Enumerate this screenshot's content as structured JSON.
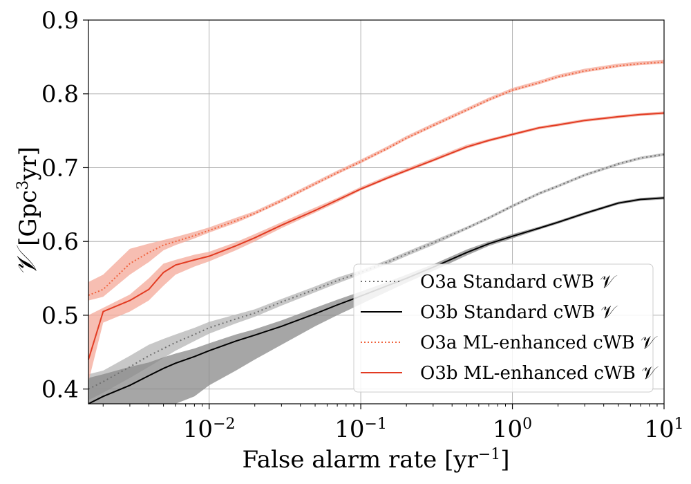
{
  "chart_data": {
    "type": "line",
    "title": "",
    "xlabel_main": "False alarm rate [yr",
    "xlabel_sup": "−1",
    "xlabel_end": "]",
    "ylabel_symbol": "𝒱",
    "ylabel_main": " [Gpc",
    "ylabel_sup": "3",
    "ylabel_end": "yr]",
    "xscale": "log",
    "xlim": [
      0.0016,
      10
    ],
    "ylim": [
      0.38,
      0.9
    ],
    "grid": true,
    "legend_position": "lower-right",
    "x_ticks": [
      {
        "value": 0.01,
        "base": "10",
        "exp": "−2"
      },
      {
        "value": 0.1,
        "base": "10",
        "exp": "−1"
      },
      {
        "value": 1,
        "base": "10",
        "exp": "0"
      },
      {
        "value": 10,
        "base": "10",
        "exp": "1"
      }
    ],
    "y_ticks": [
      {
        "value": 0.4,
        "label": "0.4"
      },
      {
        "value": 0.5,
        "label": "0.5"
      },
      {
        "value": 0.6,
        "label": "0.6"
      },
      {
        "value": 0.7,
        "label": "0.7"
      },
      {
        "value": 0.8,
        "label": "0.8"
      },
      {
        "value": 0.9,
        "label": "0.9"
      }
    ],
    "series": [
      {
        "name": "O3a Standard cWB 𝒱",
        "color": "#6e6e6e",
        "band_color": "#b4b4b4",
        "dash": "2,4",
        "x": [
          0.0016,
          0.002,
          0.003,
          0.004,
          0.005,
          0.006,
          0.008,
          0.01,
          0.015,
          0.02,
          0.03,
          0.05,
          0.07,
          0.1,
          0.15,
          0.2,
          0.3,
          0.5,
          0.7,
          1,
          1.5,
          2,
          3,
          5,
          7,
          10
        ],
        "y": [
          0.4,
          0.41,
          0.43,
          0.445,
          0.455,
          0.463,
          0.474,
          0.483,
          0.495,
          0.503,
          0.518,
          0.535,
          0.547,
          0.558,
          0.572,
          0.583,
          0.598,
          0.618,
          0.632,
          0.648,
          0.665,
          0.675,
          0.69,
          0.705,
          0.713,
          0.718
        ],
        "lower": [
          0.385,
          0.395,
          0.415,
          0.43,
          0.442,
          0.452,
          0.465,
          0.475,
          0.489,
          0.498,
          0.513,
          0.531,
          0.543,
          0.555,
          0.569,
          0.58,
          0.595,
          0.616,
          0.63,
          0.646,
          0.663,
          0.673,
          0.688,
          0.703,
          0.711,
          0.716
        ],
        "upper": [
          0.42,
          0.425,
          0.445,
          0.46,
          0.468,
          0.474,
          0.483,
          0.491,
          0.501,
          0.508,
          0.522,
          0.539,
          0.551,
          0.561,
          0.575,
          0.586,
          0.601,
          0.62,
          0.634,
          0.65,
          0.667,
          0.677,
          0.692,
          0.707,
          0.715,
          0.72
        ]
      },
      {
        "name": "O3b Standard cWB 𝒱",
        "color": "#000000",
        "band_color": "#888888",
        "dash": "",
        "x": [
          0.0016,
          0.002,
          0.003,
          0.004,
          0.005,
          0.006,
          0.008,
          0.01,
          0.015,
          0.02,
          0.03,
          0.05,
          0.07,
          0.1,
          0.15,
          0.2,
          0.3,
          0.5,
          0.7,
          1,
          1.5,
          2,
          3,
          5,
          7,
          10
        ],
        "y": [
          0.38,
          0.39,
          0.405,
          0.418,
          0.428,
          0.435,
          0.444,
          0.452,
          0.465,
          0.473,
          0.485,
          0.502,
          0.514,
          0.526,
          0.54,
          0.55,
          0.565,
          0.585,
          0.597,
          0.607,
          0.618,
          0.626,
          0.638,
          0.652,
          0.657,
          0.659
        ],
        "lower": [
          0.38,
          0.38,
          0.38,
          0.38,
          0.38,
          0.38,
          0.39,
          0.405,
          0.425,
          0.44,
          0.46,
          0.485,
          0.5,
          0.515,
          0.532,
          0.544,
          0.56,
          0.581,
          0.594,
          0.604,
          0.616,
          0.624,
          0.636,
          0.65,
          0.655,
          0.657
        ],
        "upper": [
          0.415,
          0.42,
          0.43,
          0.436,
          0.443,
          0.448,
          0.455,
          0.462,
          0.474,
          0.481,
          0.493,
          0.51,
          0.521,
          0.532,
          0.545,
          0.555,
          0.569,
          0.589,
          0.6,
          0.61,
          0.62,
          0.628,
          0.64,
          0.654,
          0.659,
          0.661
        ]
      },
      {
        "name": "O3a ML-enhanced cWB 𝒱",
        "color": "#f0643e",
        "band_color": "#f4a898",
        "dash": "2,3",
        "x": [
          0.0016,
          0.002,
          0.003,
          0.004,
          0.005,
          0.006,
          0.008,
          0.01,
          0.015,
          0.02,
          0.03,
          0.05,
          0.07,
          0.1,
          0.15,
          0.2,
          0.3,
          0.5,
          0.7,
          1,
          1.5,
          2,
          3,
          5,
          7,
          10
        ],
        "y": [
          0.527,
          0.535,
          0.57,
          0.585,
          0.595,
          0.6,
          0.608,
          0.615,
          0.628,
          0.638,
          0.655,
          0.678,
          0.693,
          0.708,
          0.726,
          0.74,
          0.757,
          0.778,
          0.792,
          0.805,
          0.815,
          0.823,
          0.831,
          0.838,
          0.841,
          0.843
        ],
        "lower": [
          0.52,
          0.525,
          0.555,
          0.572,
          0.588,
          0.595,
          0.604,
          0.612,
          0.625,
          0.636,
          0.653,
          0.676,
          0.691,
          0.706,
          0.724,
          0.738,
          0.755,
          0.776,
          0.79,
          0.803,
          0.813,
          0.821,
          0.829,
          0.836,
          0.839,
          0.841
        ],
        "upper": [
          0.545,
          0.555,
          0.59,
          0.597,
          0.602,
          0.606,
          0.613,
          0.619,
          0.632,
          0.641,
          0.658,
          0.681,
          0.696,
          0.711,
          0.729,
          0.743,
          0.76,
          0.781,
          0.795,
          0.808,
          0.818,
          0.826,
          0.834,
          0.841,
          0.844,
          0.846
        ]
      },
      {
        "name": "O3b ML-enhanced cWB 𝒱",
        "color": "#e23b22",
        "band_color": "#f4a898",
        "dash": "",
        "x": [
          0.0016,
          0.002,
          0.003,
          0.004,
          0.005,
          0.006,
          0.008,
          0.01,
          0.015,
          0.02,
          0.03,
          0.05,
          0.07,
          0.1,
          0.15,
          0.2,
          0.3,
          0.5,
          0.7,
          1,
          1.5,
          2,
          3,
          5,
          7,
          10
        ],
        "y": [
          0.44,
          0.505,
          0.52,
          0.535,
          0.558,
          0.568,
          0.575,
          0.58,
          0.594,
          0.605,
          0.622,
          0.642,
          0.656,
          0.671,
          0.686,
          0.696,
          0.71,
          0.728,
          0.737,
          0.745,
          0.754,
          0.758,
          0.764,
          0.769,
          0.772,
          0.774
        ],
        "lower": [
          0.41,
          0.49,
          0.505,
          0.52,
          0.54,
          0.555,
          0.566,
          0.573,
          0.588,
          0.6,
          0.618,
          0.639,
          0.653,
          0.669,
          0.684,
          0.694,
          0.708,
          0.726,
          0.735,
          0.743,
          0.752,
          0.756,
          0.762,
          0.767,
          0.77,
          0.772
        ],
        "upper": [
          0.5,
          0.51,
          0.528,
          0.55,
          0.57,
          0.575,
          0.582,
          0.586,
          0.599,
          0.61,
          0.626,
          0.646,
          0.659,
          0.674,
          0.689,
          0.699,
          0.713,
          0.731,
          0.739,
          0.747,
          0.756,
          0.76,
          0.766,
          0.771,
          0.774,
          0.776
        ]
      }
    ]
  }
}
